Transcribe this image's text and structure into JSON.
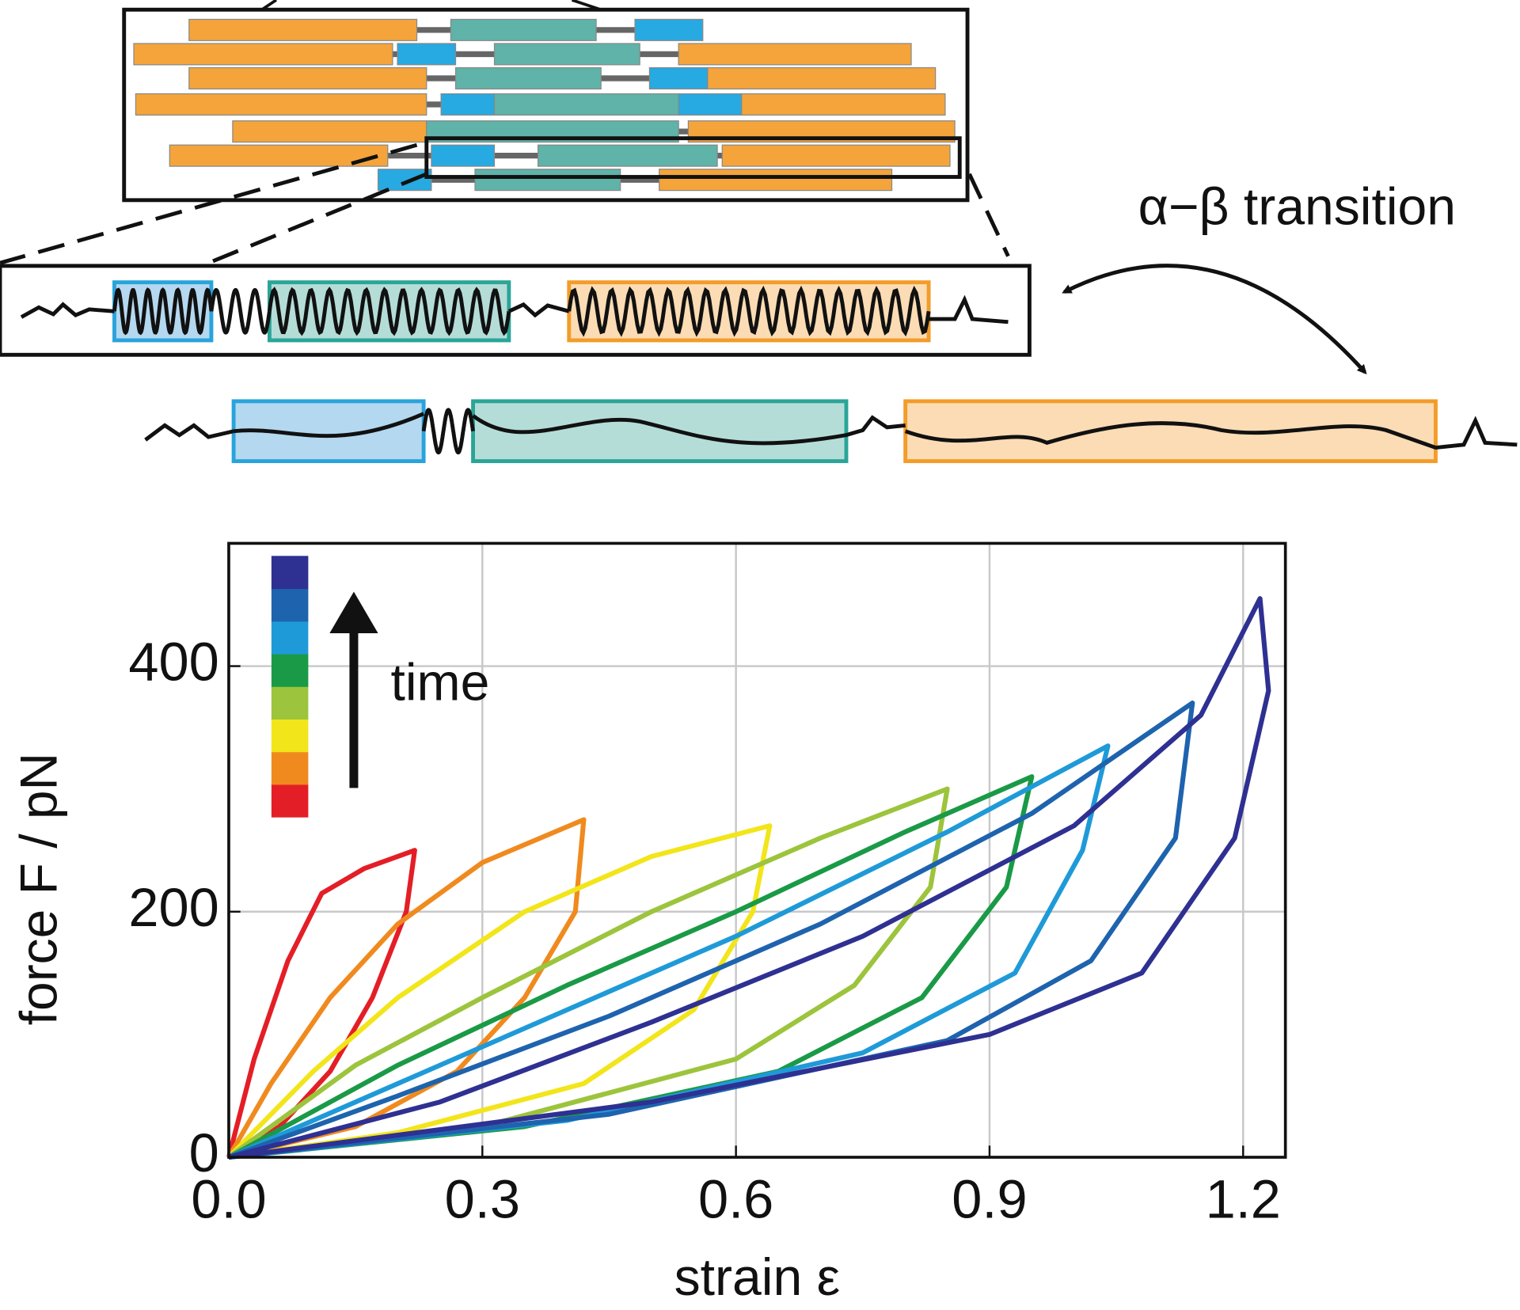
{
  "schematic": {
    "annotation": "α−β transition"
  },
  "chart_data": {
    "type": "line",
    "xlabel": "strain ε",
    "ylabel": "force F / pN",
    "annotation": "time",
    "xlim": [
      0,
      1.25
    ],
    "ylim": [
      0,
      500
    ],
    "xticks": [
      {
        "value": 0,
        "label": "0.0"
      },
      0.3,
      0.6,
      0.9,
      1.2
    ],
    "yticks": [
      0,
      200,
      400
    ],
    "grid": true,
    "series": [
      {
        "color": "#e41e26",
        "x": [
          0,
          0.03,
          0.07,
          0.11,
          0.16,
          0.22,
          0.21,
          0.17,
          0.12,
          0.06,
          0
        ],
        "values": [
          0,
          80,
          160,
          215,
          235,
          250,
          200,
          130,
          70,
          25,
          0
        ]
      },
      {
        "color": "#f08a1e",
        "x": [
          0,
          0.05,
          0.12,
          0.2,
          0.3,
          0.42,
          0.41,
          0.35,
          0.27,
          0.15,
          0
        ],
        "values": [
          0,
          60,
          130,
          190,
          240,
          275,
          200,
          130,
          70,
          25,
          0
        ]
      },
      {
        "color": "#f2e51a",
        "x": [
          0,
          0.1,
          0.2,
          0.35,
          0.5,
          0.64,
          0.62,
          0.55,
          0.42,
          0.2,
          0
        ],
        "values": [
          0,
          70,
          130,
          200,
          245,
          270,
          200,
          120,
          60,
          20,
          0
        ]
      },
      {
        "color": "#9cc43c",
        "x": [
          0,
          0.15,
          0.3,
          0.5,
          0.7,
          0.85,
          0.83,
          0.74,
          0.6,
          0.3,
          0
        ],
        "values": [
          0,
          75,
          130,
          200,
          260,
          300,
          220,
          140,
          80,
          25,
          0
        ]
      },
      {
        "color": "#1a9a46",
        "x": [
          0,
          0.2,
          0.4,
          0.6,
          0.8,
          0.95,
          0.92,
          0.82,
          0.65,
          0.35,
          0
        ],
        "values": [
          0,
          75,
          140,
          200,
          265,
          310,
          220,
          130,
          70,
          25,
          0
        ]
      },
      {
        "color": "#1f9ad8",
        "x": [
          0,
          0.2,
          0.4,
          0.6,
          0.85,
          1.04,
          1.01,
          0.93,
          0.75,
          0.4,
          0
        ],
        "values": [
          0,
          60,
          120,
          180,
          265,
          335,
          250,
          150,
          85,
          30,
          0
        ]
      },
      {
        "color": "#1e63ae",
        "x": [
          0,
          0.2,
          0.45,
          0.7,
          0.95,
          1.14,
          1.12,
          1.02,
          0.85,
          0.45,
          0
        ],
        "values": [
          0,
          50,
          115,
          190,
          280,
          370,
          260,
          160,
          95,
          35,
          0
        ]
      },
      {
        "color": "#2e3092",
        "x": [
          0,
          0.25,
          0.5,
          0.75,
          1.0,
          1.15,
          1.22,
          1.23,
          1.19,
          1.08,
          0.9,
          0.5,
          0
        ],
        "values": [
          0,
          45,
          110,
          180,
          270,
          360,
          455,
          380,
          260,
          150,
          100,
          45,
          0
        ]
      }
    ]
  }
}
